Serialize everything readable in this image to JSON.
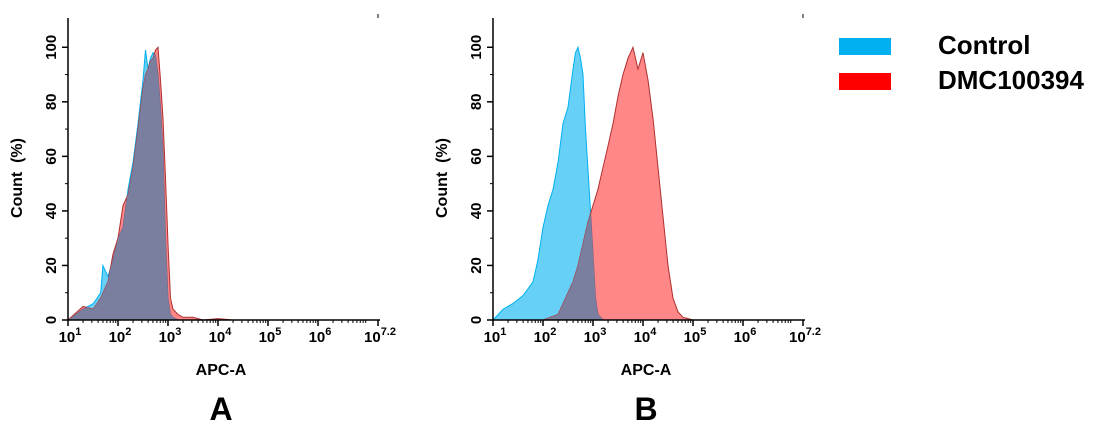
{
  "colors": {
    "control": "#00b0f0",
    "dmc": "#ff0000",
    "overlap": "#7a7f9f",
    "axis": "#000000"
  },
  "legend": {
    "placement": "top-right",
    "items": [
      {
        "label": "Control",
        "color": "#00b0f0"
      },
      {
        "label": "DMC100394",
        "color": "#ff0000"
      }
    ]
  },
  "chart_data": [
    {
      "type": "area",
      "panel_label": "A",
      "xlabel": "APC-A",
      "ylabel": "Count  (%)",
      "x_scale": "log",
      "xlim": [
        10,
        15848932
      ],
      "ylim": [
        0,
        110
      ],
      "grid": false,
      "x_ticks": [
        {
          "base": "10",
          "exp": "1",
          "value": 10
        },
        {
          "base": "10",
          "exp": "2",
          "value": 100
        },
        {
          "base": "10",
          "exp": "3",
          "value": 1000
        },
        {
          "base": "10",
          "exp": "4",
          "value": 10000
        },
        {
          "base": "10",
          "exp": "5",
          "value": 100000
        },
        {
          "base": "10",
          "exp": "6",
          "value": 1000000
        },
        {
          "base": "10",
          "exp": "7.2",
          "value": 15848932
        }
      ],
      "y_ticks": [
        "0",
        "20",
        "40",
        "60",
        "80",
        "100"
      ],
      "series": [
        {
          "name": "Control",
          "x": [
            10,
            20,
            32,
            45,
            50,
            56,
            63,
            79,
            100,
            126,
            159,
            200,
            251,
            316,
            355,
            398,
            447,
            501,
            562,
            631,
            708,
            794,
            891,
            1000,
            1122,
            1259,
            1585,
            2000
          ],
          "y": [
            0,
            4,
            6,
            10,
            20,
            18,
            16,
            22,
            30,
            34,
            48,
            58,
            72,
            88,
            99,
            92,
            96,
            98,
            97,
            90,
            78,
            62,
            30,
            8,
            2,
            1,
            0,
            0
          ]
        },
        {
          "name": "DMC100394",
          "x": [
            10,
            20,
            32,
            45,
            56,
            63,
            79,
            100,
            126,
            159,
            200,
            251,
            316,
            355,
            398,
            447,
            501,
            562,
            631,
            708,
            794,
            891,
            1000,
            1122,
            1259,
            1585,
            2000,
            3162,
            5012,
            10000,
            20000
          ],
          "y": [
            0,
            5,
            4,
            8,
            12,
            14,
            24,
            30,
            42,
            46,
            56,
            70,
            85,
            90,
            92,
            95,
            96,
            99,
            100,
            88,
            74,
            52,
            28,
            8,
            4,
            2,
            1,
            1,
            0,
            0.5,
            0
          ]
        }
      ]
    },
    {
      "type": "area",
      "panel_label": "B",
      "xlabel": "APC-A",
      "ylabel": "Count  (%)",
      "x_scale": "log",
      "xlim": [
        10,
        15848932
      ],
      "ylim": [
        0,
        110
      ],
      "grid": false,
      "x_ticks": [
        {
          "base": "10",
          "exp": "1",
          "value": 10
        },
        {
          "base": "10",
          "exp": "2",
          "value": 100
        },
        {
          "base": "10",
          "exp": "3",
          "value": 1000
        },
        {
          "base": "10",
          "exp": "4",
          "value": 10000
        },
        {
          "base": "10",
          "exp": "5",
          "value": 100000
        },
        {
          "base": "10",
          "exp": "6",
          "value": 1000000
        },
        {
          "base": "10",
          "exp": "7.2",
          "value": 15848932
        }
      ],
      "y_ticks": [
        "0",
        "20",
        "40",
        "60",
        "80",
        "100"
      ],
      "series": [
        {
          "name": "Control",
          "x": [
            10,
            16,
            25,
            40,
            63,
            79,
            100,
            126,
            159,
            200,
            251,
            316,
            398,
            447,
            501,
            562,
            631,
            708,
            794,
            891,
            1000,
            1122,
            1259,
            1585
          ],
          "y": [
            0,
            4,
            6,
            9,
            14,
            22,
            34,
            42,
            48,
            58,
            72,
            78,
            92,
            98,
            100,
            96,
            90,
            70,
            55,
            40,
            24,
            8,
            2,
            0
          ]
        },
        {
          "name": "DMC100394",
          "x": [
            10,
            100,
            200,
            251,
            316,
            398,
            501,
            631,
            794,
            1000,
            1259,
            1585,
            2000,
            2512,
            3162,
            3981,
            5012,
            6310,
            7943,
            10000,
            12589,
            15849,
            19953,
            25119,
            31623,
            39811,
            50119,
            63096,
            79433,
            100000
          ],
          "y": [
            0,
            0,
            2,
            6,
            10,
            14,
            20,
            28,
            36,
            42,
            48,
            56,
            64,
            72,
            82,
            90,
            96,
            100,
            92,
            98,
            88,
            74,
            56,
            38,
            20,
            8,
            3,
            1,
            0.5,
            0
          ]
        }
      ]
    }
  ]
}
